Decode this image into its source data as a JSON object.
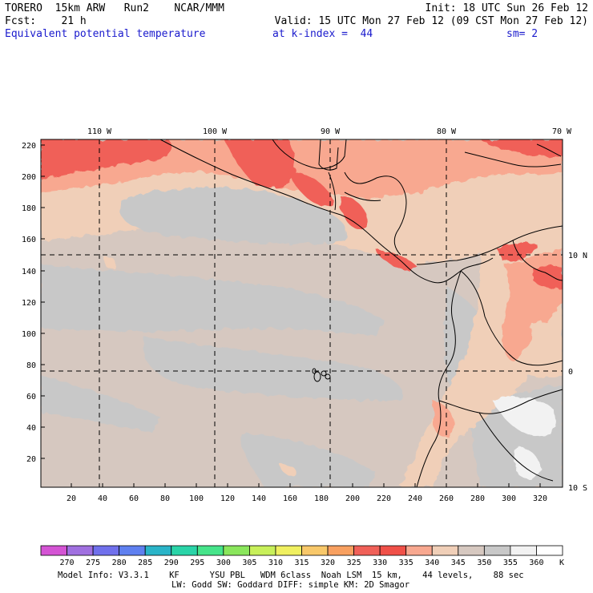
{
  "header": {
    "line1_left": "TORERO  15km ARW   Run2    NCAR/MMM",
    "line1_right": "Init: 18 UTC Sun 26 Feb 12",
    "line2_left": "Fcst:    21 h",
    "line2_right": "Valid: 15 UTC Mon 27 Feb 12 (09 CST Mon 27 Feb 12)",
    "line3_field": "Equivalent potential temperature",
    "line3_level": "at k-index =  44",
    "line3_sm": "sm= 2"
  },
  "map": {
    "lon_labels": [
      "110 W",
      "100 W",
      "90 W",
      "80 W",
      "70 W"
    ],
    "lat_labels": [
      "10 N",
      "0",
      "10 S"
    ],
    "y_ticks": [
      "220",
      "200",
      "180",
      "160",
      "140",
      "120",
      "100",
      "80",
      "60",
      "40",
      "20"
    ],
    "x_ticks": [
      "20",
      "40",
      "60",
      "80",
      "100",
      "120",
      "140",
      "160",
      "180",
      "200",
      "220",
      "240",
      "260",
      "280",
      "300",
      "320"
    ]
  },
  "colorbar": {
    "labels": [
      "270",
      "275",
      "280",
      "285",
      "290",
      "295",
      "300",
      "305",
      "310",
      "315",
      "320",
      "325",
      "330",
      "335",
      "340",
      "345",
      "350",
      "355",
      "360"
    ],
    "unit": "K",
    "colors": [
      "#d454d4",
      "#a070e0",
      "#7070ec",
      "#5f80f0",
      "#2ab4c8",
      "#2ad4a8",
      "#46e48a",
      "#8ae65c",
      "#c8f05a",
      "#f0f060",
      "#f8c86a",
      "#f8a060",
      "#f06058",
      "#f05048",
      "#f8a890",
      "#f0cfb8",
      "#d6c8c0",
      "#c8c8c8",
      "#f2f2f2",
      "#ffffff"
    ]
  },
  "footer": {
    "line1": "Model Info: V3.3.1    KF      YSU PBL   WDM 6class  Noah LSM  15 km,    44 levels,    88 sec",
    "line2": "LW: Godd SW: Goddard DIFF: simple KM: 2D Smagor"
  }
}
